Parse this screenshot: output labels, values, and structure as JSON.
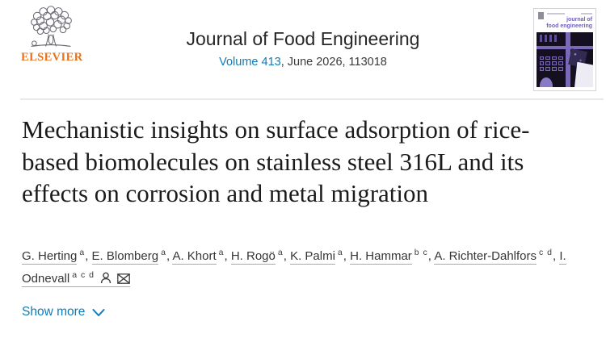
{
  "header": {
    "publisher_name": "ELSEVIER",
    "journal_title": "Journal of Food Engineering",
    "volume_link": "Volume 413",
    "issue_info": ", June 2026, 113018",
    "cover_title_line1": "journal of",
    "cover_title_line2": "food engineering"
  },
  "article": {
    "title": "Mechanistic insights on surface adsorption of rice-based biomolecules on stainless steel 316L and its effects on corrosion and metal migration",
    "authors": [
      {
        "name": "G. Herting",
        "sup": "a"
      },
      {
        "name": "E. Blomberg",
        "sup": "a"
      },
      {
        "name": "A. Khort",
        "sup": "a"
      },
      {
        "name": "H. Rogö",
        "sup": "a"
      },
      {
        "name": "K. Palmi",
        "sup": "a"
      },
      {
        "name": "H. Hammar",
        "sup": "b c"
      },
      {
        "name": "A. Richter-Dahlfors",
        "sup": "c d"
      },
      {
        "name": "I. Odnevall",
        "sup": "a c d",
        "corresponding": true
      }
    ],
    "show_more_label": "Show more"
  },
  "icons": {
    "author_profile": "person-icon",
    "corresponding_author": "envelope-icon",
    "show_more": "chevron-down-icon",
    "publisher": "elsevier-tree-logo"
  },
  "colors": {
    "link_blue": "#0c7dba",
    "elsevier_orange": "#e9711c",
    "cover_purple": "#7a68b8",
    "title_text": "#1b1b1b",
    "divider": "#e9e9e9"
  }
}
